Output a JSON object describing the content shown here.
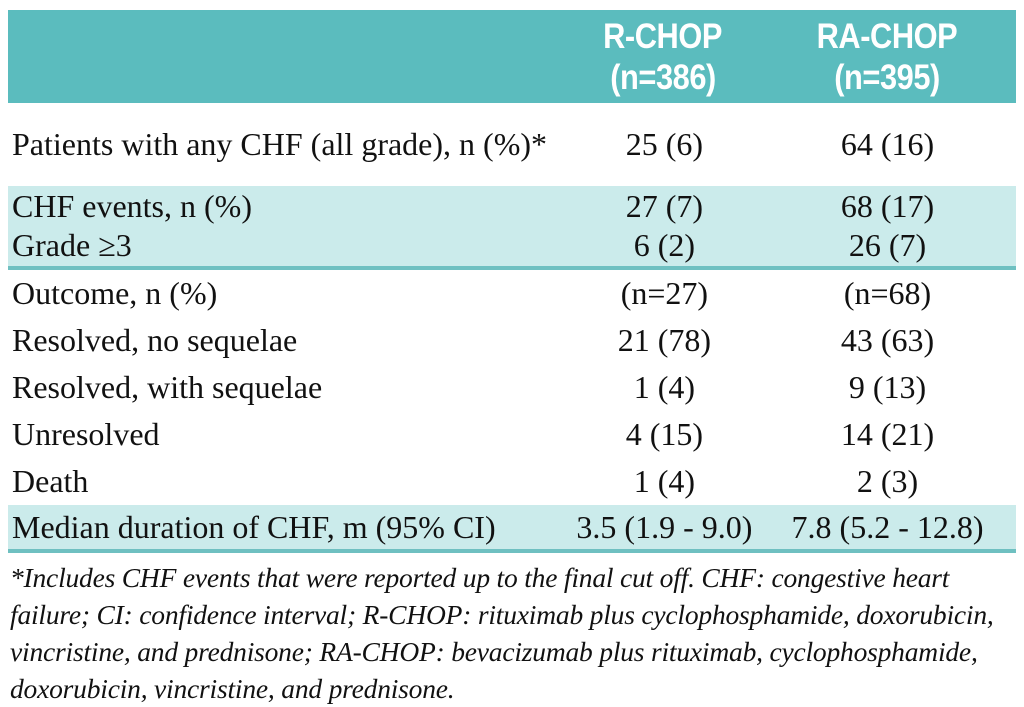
{
  "colors": {
    "header_teal": "#5BBCBE",
    "band_light_teal": "#CBEBEB",
    "divider_teal": "#6FC0C1",
    "header_text": "#FFFFFF",
    "body_text": "#111111",
    "page_background": "#FFFFFF"
  },
  "table": {
    "columns": [
      {
        "header_line1": "R-CHOP",
        "header_line2": "(n=386)"
      },
      {
        "header_line1": "RA-CHOP",
        "header_line2": "(n=395)"
      }
    ],
    "rows": [
      {
        "label": "Patients with any CHF (all grade), n (%)*",
        "c1": "25 (6)",
        "c2": "64 (16)"
      },
      {
        "label": "CHF events, n (%)",
        "c1": "27 (7)",
        "c2": "68 (17)"
      },
      {
        "label": "Grade ≥3",
        "c1": "6 (2)",
        "c2": "26 (7)"
      },
      {
        "label": "Outcome, n (%)",
        "c1": "(n=27)",
        "c2": "(n=68)"
      },
      {
        "label": "Resolved, no sequelae",
        "c1": "21 (78)",
        "c2": "43 (63)"
      },
      {
        "label": "Resolved, with sequelae",
        "c1": "1 (4)",
        "c2": "9 (13)"
      },
      {
        "label": "Unresolved",
        "c1": "4 (15)",
        "c2": "14 (21)"
      },
      {
        "label": "Death",
        "c1": "1 (4)",
        "c2": "2 (3)"
      },
      {
        "label": "Median duration of CHF, m (95% CI)",
        "c1": "3.5 (1.9 - 9.0)",
        "c2": "7.8 (5.2 - 12.8)"
      }
    ]
  },
  "footnote": "*Includes CHF events that were reported up to the final cut off. CHF: congestive heart failure; CI: confidence interval; R-CHOP: rituximab plus cyclophosphamide, doxorubicin, vincristine, and prednisone; RA-CHOP: bevacizumab plus rituximab, cyclophosphamide, doxorubicin, vincristine, and prednisone."
}
